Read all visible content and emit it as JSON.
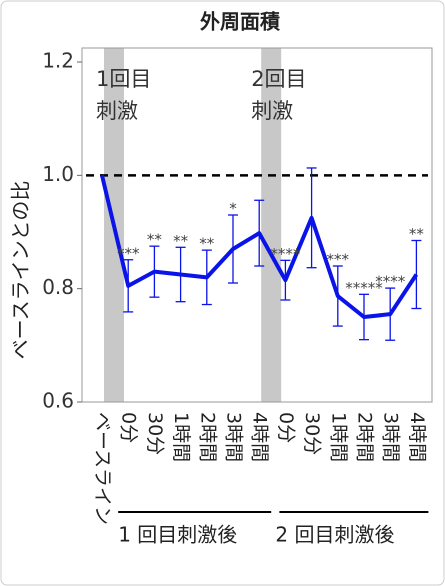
{
  "chart_data": {
    "type": "line",
    "title": "外周面積",
    "y_label": "ベースラインとの比",
    "categories": [
      "ベースライン",
      "0分",
      "30分",
      "1時間",
      "2時間",
      "3時間",
      "4時間",
      "0分",
      "30分",
      "1時間",
      "2時間",
      "3時間",
      "4時間"
    ],
    "series": [
      {
        "color": "#0a14e8",
        "values": [
          1.0,
          0.805,
          0.83,
          0.825,
          0.82,
          0.87,
          0.898,
          0.815,
          0.925,
          0.787,
          0.75,
          0.755,
          0.825
        ],
        "errors": [
          0,
          0.046,
          0.045,
          0.048,
          0.048,
          0.06,
          0.058,
          0.035,
          0.088,
          0.053,
          0.04,
          0.046,
          0.06
        ],
        "significance": [
          null,
          "***",
          "**",
          "**",
          "**",
          "*",
          null,
          "****",
          null,
          "***",
          "*****",
          "****",
          "**"
        ]
      }
    ],
    "ylim": [
      0.6,
      1.2
    ],
    "yticks": [
      0.6,
      0.8,
      1.0,
      1.2
    ],
    "yticks_labels": [
      "0.6",
      "0.8",
      "1.0",
      "1.2"
    ],
    "reference_line": 1.0,
    "stimulus_markers": [
      {
        "category_index": 1,
        "lines": [
          "1回目",
          "刺激"
        ]
      },
      {
        "category_index": 7,
        "lines": [
          "2回目",
          "刺激"
        ]
      }
    ],
    "groups": [
      {
        "label": "1 回目刺激後",
        "from": 1,
        "to": 6
      },
      {
        "label": "2 回目刺激後",
        "from": 7,
        "to": 12
      }
    ]
  }
}
